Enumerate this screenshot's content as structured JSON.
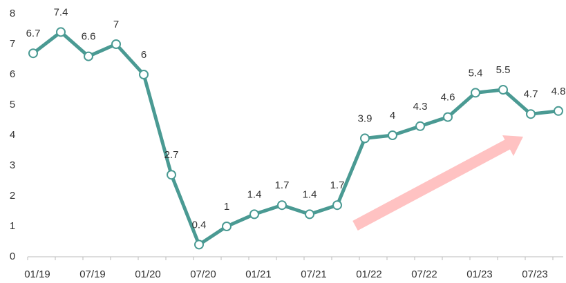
{
  "chart_data": {
    "type": "line",
    "categories": [
      "01/19",
      null,
      "07/19",
      null,
      "01/20",
      null,
      "07/20",
      null,
      "01/21",
      null,
      "07/21",
      null,
      "01/22",
      null,
      "07/22",
      null,
      "01/23",
      null,
      "07/23",
      null
    ],
    "series": [
      {
        "color": "#4a9a93",
        "values": [
          6.7,
          7.4,
          6.6,
          7,
          6,
          2.7,
          0.4,
          1,
          1.4,
          1.7,
          1.4,
          1.7,
          3.9,
          4,
          4.3,
          4.6,
          5.4,
          5.5,
          4.7,
          4.8
        ]
      }
    ],
    "ylim": [
      0,
      8
    ],
    "yticks": [
      0,
      1,
      2,
      3,
      4,
      5,
      6,
      7,
      8
    ]
  }
}
